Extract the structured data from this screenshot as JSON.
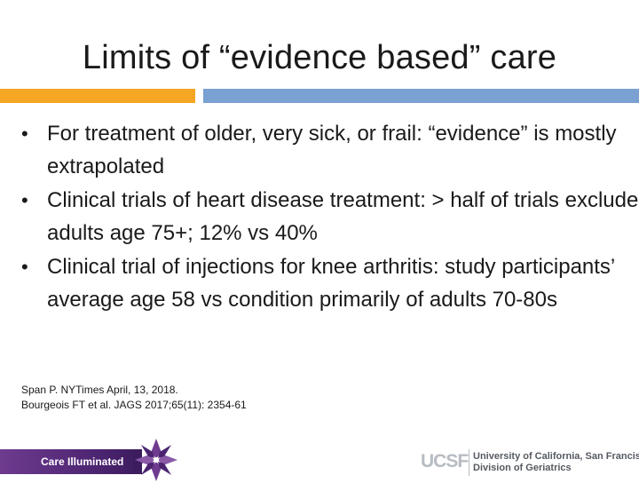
{
  "slide": {
    "title": "Limits of “evidence based” care",
    "bullet_symbol": "•",
    "bullets": [
      "For treatment of older, very sick, or frail: “evidence” is mostly extrapolated",
      "Clinical trials of heart disease treatment: > half of trials exclude adults age 75+; 12% vs 40%",
      "Clinical trial of injections for knee arthritis: study participants’ average age 58 vs condition primarily of adults 70-80s"
    ],
    "references": [
      "Span P. NYTimes April, 13, 2018.",
      "Bourgeois FT et al. JAGS 2017;65(11): 2354-61"
    ]
  },
  "footer": {
    "left_label": "Care Illuminated",
    "right_mark": "UCSF",
    "right_line1": "University of California, San Francisco",
    "right_line2": "Division of Geriatrics"
  },
  "colors": {
    "accent_orange": "#f5a623",
    "accent_blue": "#7aa1d2",
    "band_purple": "#4b2470"
  },
  "icons": {
    "logo": "care-illuminated-star-icon"
  }
}
